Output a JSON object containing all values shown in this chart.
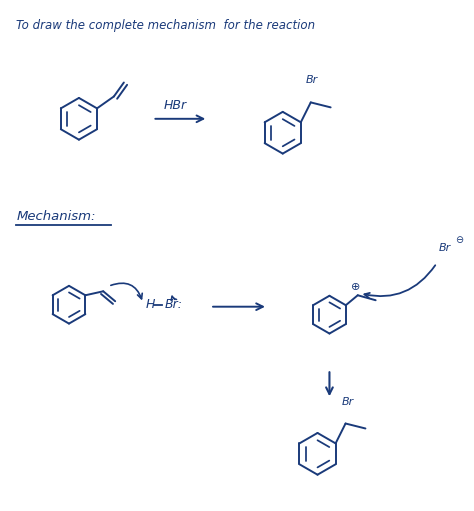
{
  "background_color": "#ffffff",
  "ink_color": "#1a3a7a",
  "title_text": "To draw the complete mechanism  for the reaction",
  "mechanism_label": "Mechanism:",
  "hbr_label": "HBr",
  "figsize": [
    4.74,
    5.11
  ],
  "dpi": 100
}
